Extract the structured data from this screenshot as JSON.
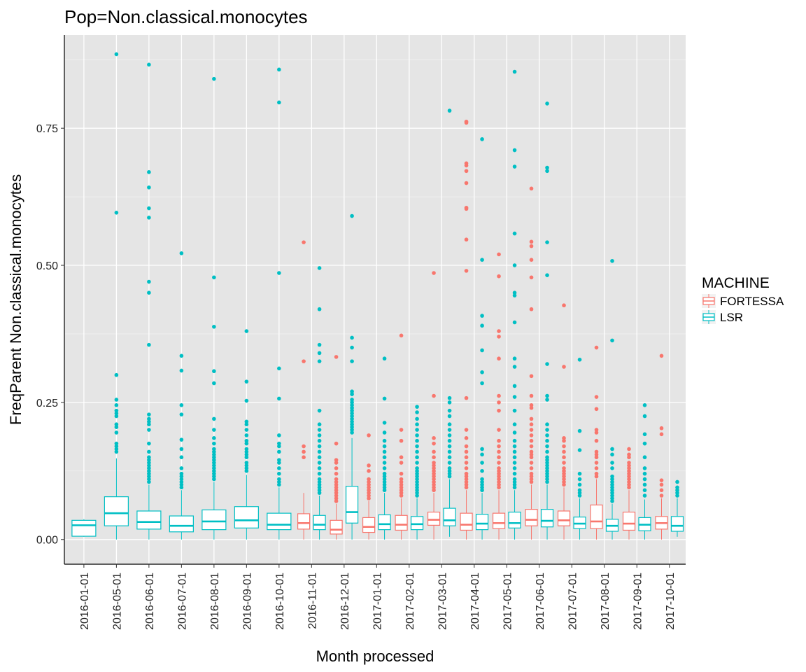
{
  "chart_data": {
    "type": "box",
    "title": "Pop=Non.classical.monocytes",
    "xlabel": "Month processed",
    "ylabel": "FreqParent  Non.classical.monocytes",
    "ylim": [
      -0.045,
      0.92
    ],
    "yticks": [
      0.0,
      0.25,
      0.5,
      0.75
    ],
    "ytick_labels": [
      "0.00",
      "0.25",
      "0.50",
      "0.75"
    ],
    "grid": true,
    "legend": {
      "title": "MACHINE",
      "placement": "right"
    },
    "categories": [
      "2016-01-01",
      "2016-05-01",
      "2016-06-01",
      "2016-07-01",
      "2016-08-01",
      "2016-09-01",
      "2016-10-01",
      "2016-11-01",
      "2016-12-01",
      "2017-01-01",
      "2017-02-01",
      "2017-03-01",
      "2017-04-01",
      "2017-05-01",
      "2017-06-01",
      "2017-07-01",
      "2017-08-01",
      "2017-09-01",
      "2017-10-01"
    ],
    "series": [
      {
        "name": "FORTESSA",
        "color": "#F8766D",
        "boxes": [
          null,
          null,
          null,
          null,
          null,
          null,
          null,
          {
            "min": 0.0,
            "q1": 0.019,
            "median": 0.03,
            "q3": 0.047,
            "max": 0.085,
            "outliers": [
              0.15,
              0.16,
              0.17,
              0.325,
              0.542
            ]
          },
          {
            "min": 0.0,
            "q1": 0.01,
            "median": 0.018,
            "q3": 0.035,
            "max": 0.065,
            "outliers": [
              0.07,
              0.075,
              0.08,
              0.085,
              0.09,
              0.095,
              0.1,
              0.105,
              0.11,
              0.12,
              0.13,
              0.14,
              0.145,
              0.175,
              0.333
            ]
          },
          {
            "min": 0.0,
            "q1": 0.013,
            "median": 0.023,
            "q3": 0.04,
            "max": 0.07,
            "outliers": [
              0.075,
              0.08,
              0.085,
              0.09,
              0.095,
              0.1,
              0.105,
              0.11,
              0.125,
              0.135,
              0.19
            ]
          },
          {
            "min": 0.0,
            "q1": 0.017,
            "median": 0.027,
            "q3": 0.044,
            "max": 0.075,
            "outliers": [
              0.08,
              0.085,
              0.09,
              0.095,
              0.1,
              0.105,
              0.11,
              0.12,
              0.14,
              0.15,
              0.18,
              0.2,
              0.372
            ]
          },
          {
            "min": 0.0,
            "q1": 0.026,
            "median": 0.036,
            "q3": 0.05,
            "max": 0.085,
            "outliers": [
              0.09,
              0.095,
              0.1,
              0.105,
              0.11,
              0.115,
              0.12,
              0.125,
              0.13,
              0.135,
              0.14,
              0.15,
              0.16,
              0.175,
              0.185,
              0.262,
              0.486
            ]
          },
          {
            "min": 0.0,
            "q1": 0.017,
            "median": 0.027,
            "q3": 0.048,
            "max": 0.09,
            "outliers": [
              0.095,
              0.1,
              0.105,
              0.11,
              0.115,
              0.12,
              0.13,
              0.14,
              0.15,
              0.16,
              0.17,
              0.185,
              0.2,
              0.258,
              0.49,
              0.547,
              0.603,
              0.605,
              0.65,
              0.672,
              0.682,
              0.686,
              0.76,
              0.762
            ]
          },
          {
            "min": 0.0,
            "q1": 0.02,
            "median": 0.03,
            "q3": 0.048,
            "max": 0.09,
            "outliers": [
              0.095,
              0.1,
              0.105,
              0.11,
              0.115,
              0.12,
              0.125,
              0.13,
              0.14,
              0.15,
              0.16,
              0.17,
              0.18,
              0.2,
              0.235,
              0.25,
              0.262,
              0.33,
              0.37,
              0.38,
              0.48,
              0.52
            ]
          },
          {
            "min": 0.0,
            "q1": 0.025,
            "median": 0.036,
            "q3": 0.055,
            "max": 0.1,
            "outliers": [
              0.105,
              0.11,
              0.115,
              0.12,
              0.13,
              0.14,
              0.15,
              0.155,
              0.16,
              0.17,
              0.18,
              0.19,
              0.2,
              0.21,
              0.22,
              0.24,
              0.245,
              0.262,
              0.298,
              0.42,
              0.478,
              0.51,
              0.535,
              0.543,
              0.64
            ]
          },
          {
            "min": 0.0,
            "q1": 0.025,
            "median": 0.035,
            "q3": 0.052,
            "max": 0.095,
            "outliers": [
              0.1,
              0.105,
              0.11,
              0.115,
              0.12,
              0.125,
              0.13,
              0.14,
              0.15,
              0.16,
              0.17,
              0.18,
              0.185,
              0.315,
              0.427
            ]
          },
          {
            "min": 0.0,
            "q1": 0.02,
            "median": 0.033,
            "q3": 0.063,
            "max": 0.11,
            "outliers": [
              0.115,
              0.12,
              0.13,
              0.14,
              0.15,
              0.155,
              0.16,
              0.18,
              0.195,
              0.2,
              0.238,
              0.26,
              0.35
            ]
          },
          {
            "min": 0.0,
            "q1": 0.017,
            "median": 0.029,
            "q3": 0.05,
            "max": 0.09,
            "outliers": [
              0.095,
              0.1,
              0.105,
              0.11,
              0.115,
              0.12,
              0.125,
              0.13,
              0.135,
              0.14,
              0.15,
              0.155,
              0.165
            ]
          },
          {
            "min": 0.0,
            "q1": 0.019,
            "median": 0.03,
            "q3": 0.042,
            "max": 0.075,
            "outliers": [
              0.08,
              0.09,
              0.1,
              0.108,
              0.192,
              0.203,
              0.335
            ]
          }
        ]
      },
      {
        "name": "LSR",
        "color": "#00BFC4",
        "boxes": [
          {
            "min": 0.005,
            "q1": 0.006,
            "median": 0.026,
            "q3": 0.035,
            "max": 0.037,
            "outliers": []
          },
          {
            "min": 0.0,
            "q1": 0.025,
            "median": 0.048,
            "q3": 0.078,
            "max": 0.148,
            "outliers": [
              0.16,
              0.165,
              0.17,
              0.175,
              0.195,
              0.205,
              0.21,
              0.225,
              0.23,
              0.235,
              0.245,
              0.255,
              0.3,
              0.596,
              0.885
            ]
          },
          {
            "min": 0.0,
            "q1": 0.019,
            "median": 0.032,
            "q3": 0.052,
            "max": 0.1,
            "outliers": [
              0.105,
              0.11,
              0.115,
              0.12,
              0.125,
              0.13,
              0.135,
              0.14,
              0.145,
              0.15,
              0.16,
              0.175,
              0.2,
              0.21,
              0.215,
              0.22,
              0.228,
              0.355,
              0.45,
              0.47,
              0.587,
              0.604,
              0.642,
              0.67,
              0.866
            ]
          },
          {
            "min": 0.0,
            "q1": 0.014,
            "median": 0.025,
            "q3": 0.043,
            "max": 0.09,
            "outliers": [
              0.095,
              0.1,
              0.105,
              0.11,
              0.115,
              0.12,
              0.13,
              0.15,
              0.165,
              0.182,
              0.228,
              0.245,
              0.308,
              0.335,
              0.522
            ]
          },
          {
            "min": 0.0,
            "q1": 0.018,
            "median": 0.033,
            "q3": 0.054,
            "max": 0.105,
            "outliers": [
              0.11,
              0.115,
              0.12,
              0.125,
              0.13,
              0.135,
              0.14,
              0.145,
              0.15,
              0.155,
              0.16,
              0.165,
              0.175,
              0.185,
              0.2,
              0.22,
              0.285,
              0.307,
              0.388,
              0.478,
              0.84
            ]
          },
          {
            "min": 0.0,
            "q1": 0.021,
            "median": 0.035,
            "q3": 0.06,
            "max": 0.118,
            "outliers": [
              0.125,
              0.13,
              0.135,
              0.14,
              0.15,
              0.155,
              0.16,
              0.165,
              0.175,
              0.18,
              0.19,
              0.2,
              0.21,
              0.215,
              0.253,
              0.288,
              0.38
            ]
          },
          {
            "min": 0.0,
            "q1": 0.018,
            "median": 0.027,
            "q3": 0.048,
            "max": 0.095,
            "outliers": [
              0.1,
              0.105,
              0.11,
              0.12,
              0.13,
              0.14,
              0.145,
              0.16,
              0.17,
              0.175,
              0.19,
              0.257,
              0.312,
              0.486,
              0.797,
              0.857
            ]
          },
          {
            "min": 0.0,
            "q1": 0.018,
            "median": 0.027,
            "q3": 0.044,
            "max": 0.08,
            "outliers": [
              0.085,
              0.09,
              0.095,
              0.1,
              0.105,
              0.11,
              0.12,
              0.13,
              0.14,
              0.15,
              0.16,
              0.17,
              0.18,
              0.19,
              0.2,
              0.21,
              0.235,
              0.325,
              0.34,
              0.355,
              0.42,
              0.495
            ]
          },
          {
            "min": 0.0,
            "q1": 0.03,
            "median": 0.05,
            "q3": 0.097,
            "max": 0.185,
            "outliers": [
              0.195,
              0.2,
              0.205,
              0.21,
              0.215,
              0.22,
              0.225,
              0.23,
              0.235,
              0.24,
              0.245,
              0.25,
              0.255,
              0.265,
              0.27,
              0.325,
              0.35,
              0.368,
              0.59
            ]
          },
          {
            "min": 0.0,
            "q1": 0.018,
            "median": 0.028,
            "q3": 0.045,
            "max": 0.085,
            "outliers": [
              0.09,
              0.095,
              0.1,
              0.105,
              0.11,
              0.115,
              0.12,
              0.13,
              0.14,
              0.15,
              0.16,
              0.17,
              0.18,
              0.195,
              0.213,
              0.257,
              0.33
            ]
          },
          {
            "min": 0.0,
            "q1": 0.018,
            "median": 0.028,
            "q3": 0.042,
            "max": 0.075,
            "outliers": [
              0.08,
              0.085,
              0.09,
              0.095,
              0.1,
              0.105,
              0.11,
              0.115,
              0.12,
              0.125,
              0.13,
              0.14,
              0.15,
              0.16,
              0.17,
              0.18,
              0.19,
              0.2,
              0.21,
              0.22,
              0.232,
              0.242
            ]
          },
          {
            "min": 0.005,
            "q1": 0.025,
            "median": 0.035,
            "q3": 0.057,
            "max": 0.11,
            "outliers": [
              0.115,
              0.12,
              0.125,
              0.13,
              0.14,
              0.15,
              0.16,
              0.17,
              0.18,
              0.19,
              0.2,
              0.21,
              0.225,
              0.235,
              0.25,
              0.258,
              0.782
            ]
          },
          {
            "min": 0.0,
            "q1": 0.018,
            "median": 0.029,
            "q3": 0.046,
            "max": 0.085,
            "outliers": [
              0.09,
              0.095,
              0.1,
              0.105,
              0.11,
              0.125,
              0.14,
              0.155,
              0.165,
              0.285,
              0.305,
              0.345,
              0.39,
              0.408,
              0.51,
              0.73
            ]
          },
          {
            "min": 0.0,
            "q1": 0.021,
            "median": 0.03,
            "q3": 0.05,
            "max": 0.09,
            "outliers": [
              0.095,
              0.1,
              0.105,
              0.11,
              0.12,
              0.13,
              0.14,
              0.15,
              0.16,
              0.17,
              0.18,
              0.195,
              0.21,
              0.235,
              0.26,
              0.28,
              0.315,
              0.33,
              0.396,
              0.445,
              0.45,
              0.5,
              0.558,
              0.68,
              0.71,
              0.853
            ]
          },
          {
            "min": 0.0,
            "q1": 0.023,
            "median": 0.034,
            "q3": 0.055,
            "max": 0.1,
            "outliers": [
              0.105,
              0.11,
              0.115,
              0.12,
              0.125,
              0.13,
              0.135,
              0.14,
              0.145,
              0.15,
              0.16,
              0.17,
              0.18,
              0.19,
              0.2,
              0.21,
              0.255,
              0.262,
              0.32,
              0.482,
              0.542,
              0.672,
              0.678,
              0.795
            ]
          },
          {
            "min": 0.0,
            "q1": 0.02,
            "median": 0.029,
            "q3": 0.041,
            "max": 0.075,
            "outliers": [
              0.08,
              0.085,
              0.09,
              0.1,
              0.11,
              0.12,
              0.163,
              0.198,
              0.328
            ]
          },
          {
            "min": 0.0,
            "q1": 0.015,
            "median": 0.025,
            "q3": 0.037,
            "max": 0.065,
            "outliers": [
              0.07,
              0.075,
              0.08,
              0.085,
              0.09,
              0.095,
              0.1,
              0.105,
              0.11,
              0.115,
              0.13,
              0.14,
              0.155,
              0.165,
              0.363,
              0.508
            ]
          },
          {
            "min": 0.0,
            "q1": 0.016,
            "median": 0.027,
            "q3": 0.04,
            "max": 0.073,
            "outliers": [
              0.08,
              0.09,
              0.1,
              0.11,
              0.12,
              0.13,
              0.15,
              0.175,
              0.192,
              0.225,
              0.245
            ]
          },
          {
            "min": 0.005,
            "q1": 0.015,
            "median": 0.025,
            "q3": 0.042,
            "max": 0.075,
            "outliers": [
              0.08,
              0.085,
              0.09,
              0.095,
              0.105
            ]
          }
        ]
      }
    ]
  }
}
